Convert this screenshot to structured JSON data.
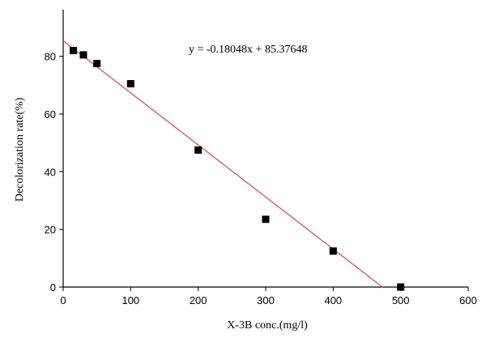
{
  "chart_data": {
    "type": "scatter",
    "title": "",
    "xlabel": "X-3B conc.(mg/l)",
    "ylabel": "Decolorization rate(%)",
    "xlim": [
      0,
      600
    ],
    "ylim": [
      0,
      95
    ],
    "xticks": [
      0,
      100,
      200,
      300,
      400,
      500,
      600
    ],
    "yticks": [
      0,
      20,
      40,
      60,
      80
    ],
    "grid": false,
    "series": [
      {
        "points": [
          {
            "x": 15,
            "y": 82
          },
          {
            "x": 30,
            "y": 80.5
          },
          {
            "x": 50,
            "y": 77.5
          },
          {
            "x": 100,
            "y": 70.5
          },
          {
            "x": 200,
            "y": 47.5
          },
          {
            "x": 300,
            "y": 23.5
          },
          {
            "x": 400,
            "y": 12.5
          },
          {
            "x": 500,
            "y": 0
          }
        ],
        "color": "#000000",
        "marker": "square"
      }
    ],
    "fit_line": {
      "slope": -0.18048,
      "intercept": 85.37648,
      "x_range": [
        0,
        473
      ],
      "color": "#d9534f"
    },
    "annotation": "y = -0.18048x + 85.37648"
  }
}
